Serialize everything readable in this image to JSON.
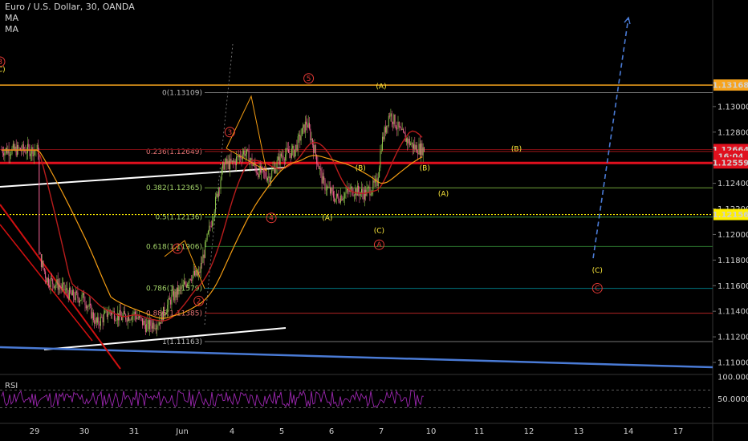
{
  "header": {
    "title": "Euro / U.S. Dollar, 30, OANDA",
    "ma1": "MA",
    "ma2": "MA"
  },
  "colors": {
    "background": "#000000",
    "candle_up": "#8bc34a",
    "candle_down": "#f06292",
    "ma_fast": "#b71c1c",
    "ma_slow": "#f39c12",
    "fib_line": "#555555",
    "price_badge_orange": "#f7a41d",
    "price_badge_red": "#e0101e",
    "price_badge_yellow": "#ffef00",
    "wave_red": "#e53935",
    "wave_yellow": "#ffeb3b",
    "projection": "#4a7bd6",
    "rsi": "#9c27b0"
  },
  "chart_data": {
    "type": "candlestick",
    "price_axis": {
      "ticks": [
        "1.13000",
        "1.12800",
        "1.12400",
        "1.12200",
        "1.12000",
        "1.11800",
        "1.11600",
        "1.11400",
        "1.11200",
        "1.11000"
      ],
      "ylim": [
        1.1097,
        1.1338
      ]
    },
    "time_axis": {
      "ticks": [
        "29",
        "30",
        "31",
        "Jun",
        "4",
        "5",
        "6",
        "7",
        "10",
        "11",
        "12",
        "13",
        "14",
        "17"
      ]
    },
    "price_badges": [
      {
        "label": "1.13168",
        "price": 1.13168,
        "color": "#f7a41d"
      },
      {
        "label": "1.12664",
        "price": 1.12664,
        "color": "#e0101e"
      },
      {
        "label": "16:04",
        "price": 1.12612,
        "color": "#e0101e"
      },
      {
        "label": "1.12559",
        "price": 1.12559,
        "color": "#e0101e"
      },
      {
        "label": "1.12156",
        "price": 1.12156,
        "color": "#ffef00"
      }
    ],
    "fib_levels": [
      {
        "label": "0(1.13109)",
        "price": 1.13109
      },
      {
        "label": "0.236(1.12649)",
        "price": 1.12649
      },
      {
        "label": "0.382(1.12365)",
        "price": 1.12365
      },
      {
        "label": "0.5(1.12136)",
        "price": 1.12136
      },
      {
        "label": "0.618(1.11906)",
        "price": 1.11906
      },
      {
        "label": "0.786(1.11579)",
        "price": 1.11579
      },
      {
        "label": "0.886(1.11385)",
        "price": 1.11385
      },
      {
        "label": "1(1.11163)",
        "price": 1.11163
      }
    ],
    "wave_labels": [
      {
        "text": "1",
        "style": "circle",
        "color": "#e53935",
        "price": 1.1189,
        "t": "May 31 21:00"
      },
      {
        "text": "2",
        "style": "circle",
        "color": "#e53935",
        "price": 1.1148,
        "t": "Jun 3 08:00"
      },
      {
        "text": "3",
        "style": "circle",
        "color": "#e53935",
        "price": 1.128,
        "t": "Jun 3 23:00"
      },
      {
        "text": "4",
        "style": "circle",
        "color": "#e53935",
        "price": 1.1213,
        "t": "Jun 4 19:00"
      },
      {
        "text": "5",
        "style": "circle",
        "color": "#e53935",
        "price": 1.1322,
        "t": "Jun 5 13:00"
      },
      {
        "text": "(A)",
        "style": "paren",
        "color": "#ffeb3b",
        "price": 1.1213,
        "t": "Jun 5 22:00"
      },
      {
        "text": "(B)",
        "style": "paren",
        "color": "#ffeb3b",
        "price": 1.1252,
        "t": "Jun 6 14:00"
      },
      {
        "text": "(C)",
        "style": "paren",
        "color": "#ffeb3b",
        "price": 1.1203,
        "t": "Jun 6 23:00"
      },
      {
        "text": "A",
        "style": "circle",
        "color": "#e53935",
        "price": 1.1192,
        "t": "Jun 6 23:00"
      },
      {
        "text": "(A)",
        "style": "paren",
        "color": "#ffeb3b",
        "price": 1.1316,
        "t": "Jun 7 00:00"
      },
      {
        "text": "(B)",
        "style": "paren",
        "color": "#ffeb3b",
        "price": 1.1252,
        "t": "Jun 7 21:00"
      },
      {
        "text": "B",
        "style": "circle",
        "color": "#e53935",
        "price": 1.1335,
        "t": "Jun 8 00:00"
      },
      {
        "text": "(C)",
        "style": "paren",
        "color": "#ffeb3b",
        "price": 1.1329,
        "t": "Jun 8 00:00"
      },
      {
        "text": "(B)",
        "style": "paren",
        "color": "#ffeb3b",
        "price": 1.1267,
        "t": "Jun 11 18:00"
      },
      {
        "text": "(A)",
        "style": "paren",
        "color": "#ffeb3b",
        "price": 1.1232,
        "t": "Jun 10 06:00"
      },
      {
        "text": "(C)",
        "style": "paren",
        "color": "#ffeb3b",
        "price": 1.1172,
        "t": "Jun 13 09:00"
      },
      {
        "text": "C",
        "style": "circle",
        "color": "#e53935",
        "price": 1.1158,
        "t": "Jun 13 09:00"
      }
    ],
    "rsi": {
      "label": "RSI",
      "ticks": [
        "100.0000",
        "50.0000"
      ],
      "ylim": [
        0,
        100
      ],
      "bands": [
        70,
        30
      ]
    }
  }
}
